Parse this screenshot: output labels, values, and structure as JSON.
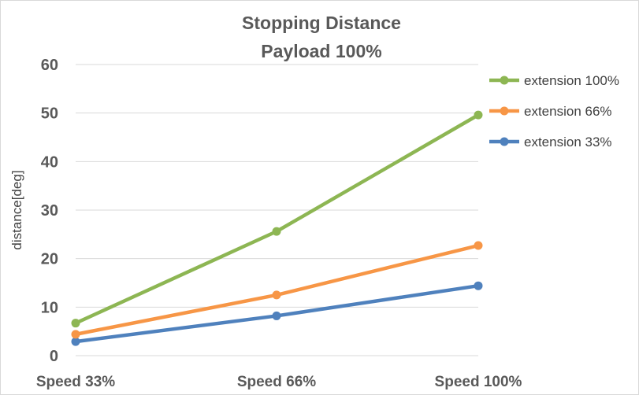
{
  "chart_data": {
    "type": "line",
    "title": "Stopping Distance",
    "subtitle": "Payload 100%",
    "xlabel": "",
    "ylabel": "distance[deg]",
    "categories": [
      "Speed 33%",
      "Speed 66%",
      "Speed 100%"
    ],
    "ylim": [
      0,
      60
    ],
    "yticks": [
      0,
      10,
      20,
      30,
      40,
      50,
      60
    ],
    "grid": true,
    "legend_position": "right",
    "series": [
      {
        "name": "extension 100%",
        "color": "#8DB653",
        "values": [
          6.7,
          25.6,
          49.6
        ]
      },
      {
        "name": "extension 66%",
        "color": "#F79646",
        "values": [
          4.4,
          12.5,
          22.7
        ]
      },
      {
        "name": "extension 33%",
        "color": "#4F81BD",
        "values": [
          2.9,
          8.2,
          14.4
        ]
      }
    ]
  }
}
